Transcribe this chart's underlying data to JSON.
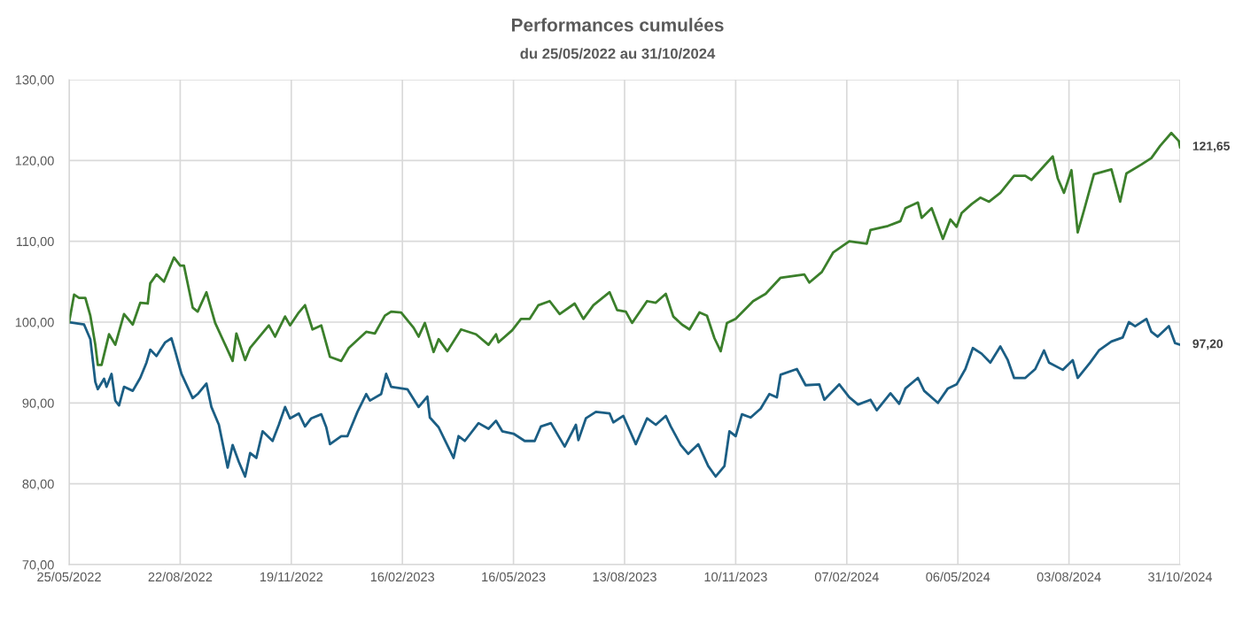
{
  "chart_data": {
    "type": "line",
    "title": "Performances cumulées",
    "subtitle": "du 25/05/2022 au 31/10/2024",
    "xlim": [
      "2022-05-25",
      "2024-10-31"
    ],
    "xticks": [
      {
        "value": "2022-05-25",
        "label": "25/05/2022"
      },
      {
        "value": "2022-08-22",
        "label": "22/08/2022"
      },
      {
        "value": "2022-11-19",
        "label": "19/11/2022"
      },
      {
        "value": "2023-02-16",
        "label": "16/02/2023"
      },
      {
        "value": "2023-05-16",
        "label": "16/05/2023"
      },
      {
        "value": "2023-08-13",
        "label": "13/08/2023"
      },
      {
        "value": "2023-11-10",
        "label": "10/11/2023"
      },
      {
        "value": "2024-02-07",
        "label": "07/02/2024"
      },
      {
        "value": "2024-05-06",
        "label": "06/05/2024"
      },
      {
        "value": "2024-08-03",
        "label": "03/08/2024"
      },
      {
        "value": "2024-10-31",
        "label": "31/10/2024"
      }
    ],
    "ylim": [
      70,
      130
    ],
    "yticks": [
      {
        "value": 70,
        "label": "70,00"
      },
      {
        "value": 80,
        "label": "80,00"
      },
      {
        "value": 90,
        "label": "90,00"
      },
      {
        "value": 100,
        "label": "100,00"
      },
      {
        "value": 110,
        "label": "110,00"
      },
      {
        "value": 120,
        "label": "120,00"
      },
      {
        "value": 130,
        "label": "130,00"
      }
    ],
    "grid": true,
    "marker": "none",
    "line_style": "solid",
    "series": [
      {
        "color": "#1b5e84",
        "x": [
          "2022-05-25",
          "2022-06-06",
          "2022-06-11",
          "2022-06-15",
          "2022-06-17",
          "2022-06-22",
          "2022-06-24",
          "2022-06-28",
          "2022-07-01",
          "2022-07-04",
          "2022-07-08",
          "2022-07-15",
          "2022-07-21",
          "2022-07-26",
          "2022-07-29",
          "2022-08-03",
          "2022-08-10",
          "2022-08-15",
          "2022-08-18",
          "2022-08-23",
          "2022-09-01",
          "2022-09-05",
          "2022-09-12",
          "2022-09-16",
          "2022-09-22",
          "2022-09-29",
          "2022-10-03",
          "2022-10-08",
          "2022-10-13",
          "2022-10-17",
          "2022-10-22",
          "2022-10-27",
          "2022-11-04",
          "2022-11-09",
          "2022-11-14",
          "2022-11-18",
          "2022-11-25",
          "2022-11-30",
          "2022-12-05",
          "2022-12-13",
          "2022-12-17",
          "2022-12-20",
          "2022-12-29",
          "2023-01-03",
          "2023-01-11",
          "2023-01-18",
          "2023-01-21",
          "2023-01-30",
          "2023-02-03",
          "2023-02-07",
          "2023-02-20",
          "2023-03-01",
          "2023-03-08",
          "2023-03-10",
          "2023-03-17",
          "2023-03-23",
          "2023-03-29",
          "2023-04-02",
          "2023-04-07",
          "2023-04-18",
          "2023-04-26",
          "2023-05-02",
          "2023-05-07",
          "2023-05-16",
          "2023-05-25",
          "2023-06-02",
          "2023-06-07",
          "2023-06-15",
          "2023-06-26",
          "2023-07-05",
          "2023-07-07",
          "2023-07-13",
          "2023-07-21",
          "2023-08-01",
          "2023-08-04",
          "2023-08-12",
          "2023-08-22",
          "2023-08-31",
          "2023-09-07",
          "2023-09-15",
          "2023-09-19",
          "2023-09-27",
          "2023-10-03",
          "2023-10-11",
          "2023-10-19",
          "2023-10-25",
          "2023-11-01",
          "2023-11-05",
          "2023-11-10",
          "2023-11-15",
          "2023-11-22",
          "2023-11-30",
          "2023-12-07",
          "2023-12-13",
          "2023-12-16",
          "2023-12-29",
          "2024-01-05",
          "2024-01-16",
          "2024-01-20",
          "2024-02-01",
          "2024-02-09",
          "2024-02-16",
          "2024-02-26",
          "2024-03-02",
          "2024-03-13",
          "2024-03-20",
          "2024-03-25",
          "2024-04-04",
          "2024-04-09",
          "2024-04-20",
          "2024-04-28",
          "2024-05-05",
          "2024-05-12",
          "2024-05-18",
          "2024-05-25",
          "2024-06-01",
          "2024-06-09",
          "2024-06-15",
          "2024-06-20",
          "2024-06-29",
          "2024-07-07",
          "2024-07-14",
          "2024-07-18",
          "2024-07-29",
          "2024-08-06",
          "2024-08-10",
          "2024-08-20",
          "2024-08-27",
          "2024-09-06",
          "2024-09-15",
          "2024-09-20",
          "2024-09-25",
          "2024-10-04",
          "2024-10-08",
          "2024-10-13",
          "2024-10-22",
          "2024-10-27",
          "2024-10-31"
        ],
        "values": [
          100.0,
          99.7,
          97.9,
          92.6,
          91.7,
          93.0,
          92.0,
          93.6,
          90.3,
          89.7,
          92.0,
          91.5,
          93.1,
          95.0,
          96.6,
          95.8,
          97.5,
          98.0,
          96.4,
          93.6,
          90.6,
          91.1,
          92.4,
          89.5,
          87.3,
          82.0,
          84.8,
          82.7,
          80.9,
          83.8,
          83.2,
          86.5,
          85.3,
          87.3,
          89.5,
          88.1,
          88.7,
          87.1,
          88.1,
          88.6,
          87.0,
          84.9,
          85.9,
          85.9,
          88.9,
          91.1,
          90.3,
          91.1,
          93.6,
          92.0,
          91.7,
          89.5,
          90.8,
          88.2,
          87.0,
          85.1,
          83.2,
          85.9,
          85.3,
          87.5,
          86.8,
          87.8,
          86.5,
          86.2,
          85.3,
          85.3,
          87.1,
          87.5,
          84.6,
          87.3,
          85.4,
          88.1,
          88.9,
          88.7,
          87.6,
          88.4,
          84.9,
          88.1,
          87.3,
          88.4,
          87.1,
          84.8,
          83.7,
          84.9,
          82.2,
          80.9,
          82.2,
          86.5,
          85.9,
          88.6,
          88.2,
          89.3,
          91.1,
          90.7,
          93.5,
          94.2,
          92.2,
          92.3,
          90.4,
          92.3,
          90.7,
          89.8,
          90.4,
          89.1,
          91.2,
          89.9,
          91.8,
          93.1,
          91.5,
          90.0,
          91.8,
          92.3,
          94.2,
          96.8,
          96.1,
          95.0,
          97.0,
          95.3,
          93.1,
          93.1,
          94.2,
          96.5,
          95.0,
          94.1,
          95.3,
          93.1,
          95.0,
          96.5,
          97.6,
          98.1,
          100.0,
          99.5,
          100.4,
          98.8,
          98.2,
          99.5,
          97.4,
          97.2
        ]
      },
      {
        "color": "#3b7f2b",
        "x": [
          "2022-05-25",
          "2022-05-29",
          "2022-06-02",
          "2022-06-07",
          "2022-06-11",
          "2022-06-15",
          "2022-06-17",
          "2022-06-20",
          "2022-06-26",
          "2022-07-01",
          "2022-07-08",
          "2022-07-15",
          "2022-07-21",
          "2022-07-27",
          "2022-07-29",
          "2022-08-03",
          "2022-08-09",
          "2022-08-17",
          "2022-08-22",
          "2022-08-25",
          "2022-09-01",
          "2022-09-05",
          "2022-09-12",
          "2022-09-19",
          "2022-10-03",
          "2022-10-06",
          "2022-10-13",
          "2022-10-17",
          "2022-11-01",
          "2022-11-06",
          "2022-11-14",
          "2022-11-18",
          "2022-11-25",
          "2022-11-30",
          "2022-12-06",
          "2022-12-13",
          "2022-12-20",
          "2022-12-29",
          "2023-01-04",
          "2023-01-18",
          "2023-01-25",
          "2023-02-02",
          "2023-02-07",
          "2023-02-15",
          "2023-02-25",
          "2023-03-01",
          "2023-03-06",
          "2023-03-13",
          "2023-03-17",
          "2023-03-24",
          "2023-04-04",
          "2023-04-16",
          "2023-04-26",
          "2023-05-02",
          "2023-05-04",
          "2023-05-15",
          "2023-05-22",
          "2023-05-29",
          "2023-06-05",
          "2023-06-14",
          "2023-06-22",
          "2023-07-04",
          "2023-07-11",
          "2023-07-19",
          "2023-08-01",
          "2023-08-07",
          "2023-08-14",
          "2023-08-19",
          "2023-08-31",
          "2023-09-07",
          "2023-09-15",
          "2023-09-21",
          "2023-09-28",
          "2023-10-04",
          "2023-10-12",
          "2023-10-18",
          "2023-10-24",
          "2023-10-29",
          "2023-11-03",
          "2023-11-10",
          "2023-11-24",
          "2023-12-04",
          "2023-12-16",
          "2024-01-04",
          "2024-01-08",
          "2024-01-18",
          "2024-01-27",
          "2024-02-09",
          "2024-02-23",
          "2024-02-26",
          "2024-03-11",
          "2024-03-21",
          "2024-03-25",
          "2024-04-04",
          "2024-04-07",
          "2024-04-15",
          "2024-04-24",
          "2024-04-30",
          "2024-05-05",
          "2024-05-09",
          "2024-05-17",
          "2024-05-24",
          "2024-05-31",
          "2024-06-09",
          "2024-06-20",
          "2024-06-29",
          "2024-07-04",
          "2024-07-11",
          "2024-07-21",
          "2024-07-25",
          "2024-07-30",
          "2024-08-05",
          "2024-08-10",
          "2024-08-15",
          "2024-08-23",
          "2024-09-06",
          "2024-09-13",
          "2024-09-18",
          "2024-09-30",
          "2024-10-08",
          "2024-10-15",
          "2024-10-24",
          "2024-10-30",
          "2024-10-31"
        ],
        "values": [
          100.0,
          103.4,
          103.0,
          103.0,
          100.8,
          97.2,
          94.7,
          94.7,
          98.5,
          97.2,
          101.0,
          99.7,
          102.4,
          102.3,
          104.8,
          105.9,
          105.0,
          108.0,
          107.0,
          107.0,
          101.8,
          101.3,
          103.7,
          99.9,
          95.2,
          98.6,
          95.3,
          96.8,
          99.6,
          98.2,
          100.7,
          99.6,
          101.2,
          102.1,
          99.1,
          99.6,
          95.7,
          95.2,
          96.8,
          98.8,
          98.6,
          100.8,
          101.3,
          101.2,
          99.3,
          98.2,
          99.9,
          96.3,
          97.9,
          96.4,
          99.1,
          98.5,
          97.2,
          98.5,
          97.5,
          99.0,
          100.4,
          100.4,
          102.1,
          102.6,
          101.0,
          102.3,
          100.4,
          102.1,
          103.7,
          101.5,
          101.3,
          99.9,
          102.6,
          102.4,
          103.5,
          100.7,
          99.7,
          99.1,
          101.2,
          100.8,
          98.0,
          96.4,
          99.9,
          100.4,
          102.6,
          103.5,
          105.5,
          105.9,
          104.9,
          106.2,
          108.6,
          110.0,
          109.7,
          111.4,
          111.9,
          112.5,
          114.1,
          114.8,
          112.9,
          114.1,
          110.3,
          112.7,
          111.8,
          113.5,
          114.6,
          115.4,
          114.9,
          116.0,
          118.1,
          118.1,
          117.6,
          118.8,
          120.5,
          117.8,
          116.0,
          118.8,
          111.1,
          113.8,
          118.3,
          118.9,
          114.9,
          118.4,
          119.5,
          120.3,
          121.8,
          123.4,
          122.4,
          121.65
        ]
      }
    ],
    "annotations": [
      {
        "text": "121,65",
        "x": "2024-10-31",
        "y": 121.65
      },
      {
        "text": "97,20",
        "x": "2024-10-31",
        "y": 97.2
      }
    ]
  }
}
